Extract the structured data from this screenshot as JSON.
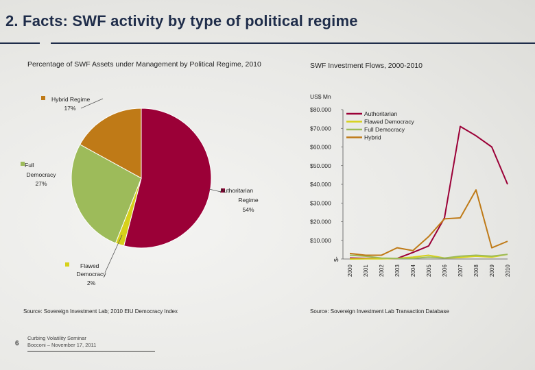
{
  "slide": {
    "title": "2.   Facts: SWF activity by type of political regime",
    "page_number": "6",
    "footer_line1": "Curbing Volatility Seminar",
    "footer_line2": "Bocconi – November 17, 2011"
  },
  "chart_data": [
    {
      "type": "pie",
      "title": "Percentage of SWF Assets under Management by Political Regime, 2010",
      "source": "Source:  Sovereign Investment Lab; 2010 EIU Democracy Index",
      "slices": [
        {
          "name": "Authoritarian Regime",
          "label_lines": [
            "Authoritarian",
            "Regime"
          ],
          "pct_label": "54%",
          "value": 54,
          "color": "#9b0037"
        },
        {
          "name": "Flawed Democracy",
          "label_lines": [
            "Flawed",
            "Democracy"
          ],
          "pct_label": "2%",
          "value": 2,
          "color": "#d6d11a"
        },
        {
          "name": "Full Democracy",
          "label_lines": [
            "Full",
            "Democracy"
          ],
          "pct_label": "27%",
          "value": 27,
          "color": "#9dbb5a"
        },
        {
          "name": "Hybrid Regime",
          "label_lines": [
            "Hybrid Regime"
          ],
          "pct_label": "17%",
          "value": 17,
          "color": "#bf7a17"
        }
      ]
    },
    {
      "type": "line",
      "title": "SWF Investment Flows, 2000-2010",
      "source": "Source: Sovereign Investment Lab Transaction Database",
      "unit_label": "US$ Mn",
      "x": [
        "2000",
        "2001",
        "2002",
        "2003",
        "2004",
        "2005",
        "2006",
        "2007",
        "2008",
        "2009",
        "2010"
      ],
      "y_ticks": [
        {
          "value": 0,
          "label": "$-"
        },
        {
          "value": 10000,
          "label": "$10.000"
        },
        {
          "value": 20000,
          "label": "$20.000"
        },
        {
          "value": 30000,
          "label": "$30.000"
        },
        {
          "value": 40000,
          "label": "$40.000"
        },
        {
          "value": 50000,
          "label": "$50.000"
        },
        {
          "value": 60000,
          "label": "$60.000"
        },
        {
          "value": 70000,
          "label": "$70.000"
        },
        {
          "value": 80000,
          "label": "$80.000"
        }
      ],
      "ylim": [
        0,
        80000
      ],
      "series": [
        {
          "name": "Authoritarian",
          "color": "#9b0037",
          "values": [
            500,
            300,
            200,
            300,
            3500,
            7000,
            22000,
            71000,
            66000,
            60000,
            40000
          ]
        },
        {
          "name": "Flawed Democracy",
          "color": "#d6d11a",
          "values": [
            0,
            100,
            100,
            300,
            1000,
            2000,
            500,
            800,
            1500,
            1000,
            2500
          ]
        },
        {
          "name": "Full Democracy",
          "color": "#9dbb5a",
          "values": [
            2000,
            1500,
            500,
            300,
            300,
            1000,
            500,
            1500,
            2000,
            1500,
            2500
          ]
        },
        {
          "name": "Hybrid",
          "color": "#bf7a17",
          "values": [
            3000,
            2000,
            2000,
            6000,
            4500,
            12000,
            21500,
            22000,
            37000,
            6000,
            9500
          ]
        }
      ]
    }
  ]
}
